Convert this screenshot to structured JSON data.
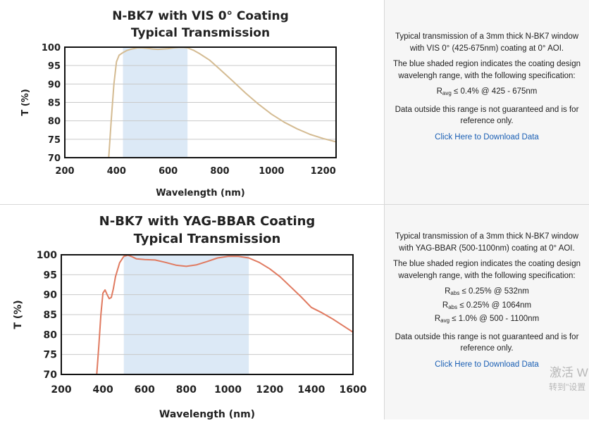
{
  "panels": [
    {
      "chart_data": {
        "type": "line",
        "title": [
          "N-BK7 with VIS 0° Coating",
          "Typical Transmission"
        ],
        "xlabel": "Wavelength (nm)",
        "ylabel": "T (%)",
        "xlim": [
          200,
          1250
        ],
        "ylim": [
          70,
          100
        ],
        "xticks": [
          200,
          400,
          600,
          800,
          1000,
          1200
        ],
        "yticks": [
          70,
          75,
          80,
          85,
          90,
          95,
          100
        ],
        "grid": "horizontal",
        "shaded_band": [
          425,
          675
        ],
        "shade_color": "#dce9f6",
        "line_color": "#d4bb92",
        "series": [
          {
            "x": [
              370,
              380,
              390,
              400,
              410,
              420,
              425,
              440,
              460,
              480,
              500,
              520,
              540,
              560,
              580,
              600,
              620,
              640,
              660,
              675,
              700,
              720,
              760,
              800,
              850,
              900,
              950,
              1000,
              1050,
              1100,
              1150,
              1200,
              1250
            ],
            "y": [
              70,
              80.5,
              90,
              96,
              97.8,
              98.3,
              98.5,
              99.1,
              99.5,
              99.8,
              99.8,
              99.7,
              99.5,
              99.4,
              99.5,
              99.6,
              99.8,
              99.9,
              99.9,
              99.8,
              99.1,
              98.3,
              96.5,
              94.0,
              90.8,
              87.5,
              84.5,
              81.8,
              79.6,
              77.8,
              76.3,
              75.2,
              74.3
            ]
          }
        ]
      },
      "description": {
        "intro": "Typical transmission of a 3mm thick N-BK7 window with VIS 0° (425-675nm) coating at 0° AOI.",
        "shaded_note": "The blue shaded region indicates the coating design wavelengh range, with the following specification:",
        "specs": [
          {
            "sym": "R",
            "sub": "avg",
            "text": " ≤ 0.4% @ 425 - 675nm"
          }
        ],
        "disclaimer": "Data outside this range is not guaranteed and is for reference only.",
        "download_link": "Click Here to Download Data"
      }
    },
    {
      "chart_data": {
        "type": "line",
        "title": [
          "N-BK7 with YAG-BBAR Coating",
          "Typical Transmission"
        ],
        "xlabel": "Wavelength (nm)",
        "ylabel": "T (%)",
        "xlim": [
          200,
          1600
        ],
        "ylim": [
          70,
          100
        ],
        "xticks": [
          200,
          400,
          600,
          800,
          1000,
          1200,
          1400,
          1600
        ],
        "yticks": [
          70,
          75,
          80,
          85,
          90,
          95,
          100
        ],
        "grid": "horizontal",
        "shaded_band": [
          500,
          1100
        ],
        "shade_color": "#dce9f6",
        "line_color": "#e07a60",
        "series": [
          {
            "x": [
              370,
              380,
              390,
              400,
              410,
              420,
              430,
              440,
              450,
              460,
              480,
              500,
              520,
              540,
              560,
              600,
              650,
              700,
              750,
              800,
              850,
              900,
              950,
              1000,
              1050,
              1100,
              1150,
              1200,
              1250,
              1300,
              1350,
              1400,
              1450,
              1500,
              1550,
              1600
            ],
            "y": [
              70,
              77,
              85,
              90.4,
              91.2,
              90.0,
              89.0,
              89.3,
              91.5,
              94.5,
              98.0,
              99.6,
              99.9,
              99.5,
              99.0,
              98.8,
              98.7,
              98.1,
              97.4,
              97.1,
              97.5,
              98.3,
              99.2,
              99.6,
              99.6,
              99.2,
              98.1,
              96.5,
              94.5,
              92.0,
              89.5,
              86.8,
              85.5,
              84.0,
              82.3,
              80.6
            ]
          }
        ]
      },
      "description": {
        "intro": "Typical transmission of a 3mm thick N-BK7 window with YAG-BBAR (500-1100nm) coating at 0° AOI.",
        "shaded_note": "The blue shaded region indicates the coating design wavelengh range, with the following specification:",
        "specs": [
          {
            "sym": "R",
            "sub": "abs",
            "text": " ≤ 0.25% @ 532nm"
          },
          {
            "sym": "R",
            "sub": "abs",
            "text": " ≤ 0.25% @ 1064nm"
          },
          {
            "sym": "R",
            "sub": "avg",
            "text": " ≤ 1.0% @ 500 - 1100nm"
          }
        ],
        "disclaimer": "Data outside this range is not guaranteed and is for reference only.",
        "download_link": "Click Here to Download Data"
      }
    }
  ],
  "watermark": {
    "line1": "激活 W",
    "line2": "转到\"设置"
  }
}
